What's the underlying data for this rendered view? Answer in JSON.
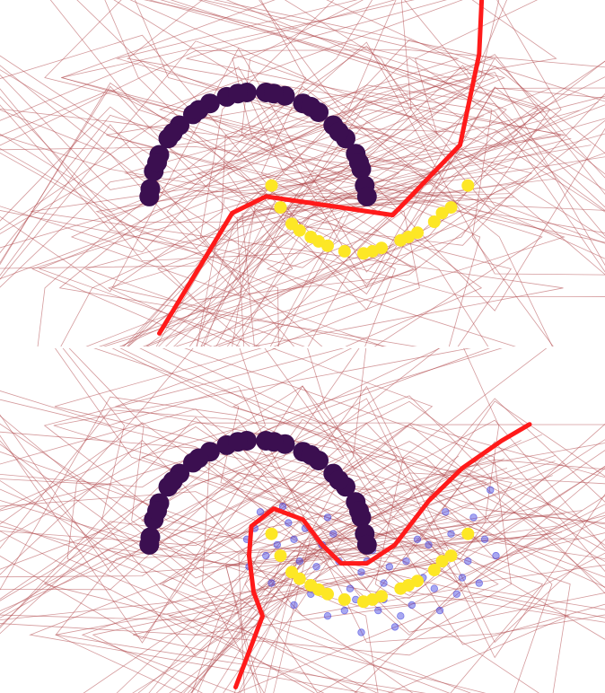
{
  "colors": {
    "class_0": "#3b0f50",
    "class_1": "#fde725",
    "boundary": "#ff1a1a",
    "region_lines": "#b0474b",
    "unlabeled": "#3f3fe0",
    "background": "#ffffff"
  },
  "chart_data": [
    {
      "type": "scatter",
      "title": "",
      "xlabel": "",
      "ylabel": "",
      "grid": false,
      "axes_visible": false,
      "series": [
        {
          "name": "",
          "color": "#3b0f50",
          "points": [
            [
              -0.98,
              0.12
            ],
            [
              -0.95,
              0.28
            ],
            [
              -0.9,
              0.43
            ],
            [
              -0.82,
              0.58
            ],
            [
              -0.72,
              0.7
            ],
            [
              -0.6,
              0.8
            ],
            [
              -0.45,
              0.9
            ],
            [
              -0.3,
              0.96
            ],
            [
              -0.12,
              1.0
            ],
            [
              0.05,
              1.0
            ],
            [
              0.22,
              0.97
            ],
            [
              0.38,
              0.9
            ],
            [
              0.52,
              0.82
            ],
            [
              0.65,
              0.7
            ],
            [
              0.76,
              0.58
            ],
            [
              0.85,
              0.44
            ],
            [
              0.9,
              0.3
            ],
            [
              0.93,
              0.15
            ],
            [
              0.95,
              0.05
            ],
            [
              -0.99,
              0.05
            ],
            [
              -0.92,
              0.36
            ],
            [
              -0.78,
              0.63
            ],
            [
              -0.55,
              0.84
            ],
            [
              -0.2,
              0.99
            ],
            [
              0.12,
              0.99
            ],
            [
              0.45,
              0.87
            ],
            [
              0.7,
              0.64
            ],
            [
              0.88,
              0.36
            ]
          ]
        },
        {
          "name": "",
          "color": "#fde725",
          "points": [
            [
              0.1,
              0.15
            ],
            [
              0.18,
              -0.05
            ],
            [
              0.28,
              -0.2
            ],
            [
              0.45,
              -0.32
            ],
            [
              0.6,
              -0.4
            ],
            [
              0.75,
              -0.45
            ],
            [
              0.92,
              -0.47
            ],
            [
              1.08,
              -0.42
            ],
            [
              1.25,
              -0.35
            ],
            [
              1.4,
              -0.28
            ],
            [
              1.55,
              -0.18
            ],
            [
              1.7,
              -0.05
            ],
            [
              1.85,
              0.15
            ],
            [
              0.52,
              -0.36
            ],
            [
              1.0,
              -0.45
            ],
            [
              1.32,
              -0.32
            ],
            [
              0.35,
              -0.26
            ],
            [
              1.62,
              -0.1
            ]
          ]
        }
      ],
      "decision_boundary": [
        [
          -0.9,
          -1.2
        ],
        [
          -0.25,
          -0.1
        ],
        [
          0.05,
          0.05
        ],
        [
          1.18,
          -0.12
        ],
        [
          1.78,
          0.52
        ],
        [
          1.95,
          1.35
        ],
        [
          1.98,
          2.0
        ]
      ]
    },
    {
      "type": "scatter",
      "title": "",
      "xlabel": "",
      "ylabel": "",
      "grid": false,
      "axes_visible": false,
      "series": [
        {
          "name": "",
          "color": "#3b0f50",
          "points": [
            [
              -0.98,
              0.12
            ],
            [
              -0.95,
              0.28
            ],
            [
              -0.9,
              0.43
            ],
            [
              -0.82,
              0.58
            ],
            [
              -0.72,
              0.7
            ],
            [
              -0.6,
              0.8
            ],
            [
              -0.45,
              0.9
            ],
            [
              -0.3,
              0.96
            ],
            [
              -0.12,
              1.0
            ],
            [
              0.05,
              1.0
            ],
            [
              0.22,
              0.97
            ],
            [
              0.38,
              0.9
            ],
            [
              0.52,
              0.82
            ],
            [
              0.65,
              0.7
            ],
            [
              0.76,
              0.58
            ],
            [
              0.85,
              0.44
            ],
            [
              0.9,
              0.3
            ],
            [
              0.93,
              0.15
            ],
            [
              0.95,
              0.05
            ],
            [
              -0.99,
              0.05
            ],
            [
              -0.92,
              0.36
            ],
            [
              -0.78,
              0.63
            ],
            [
              -0.55,
              0.84
            ],
            [
              -0.2,
              0.99
            ],
            [
              0.12,
              0.99
            ],
            [
              0.45,
              0.87
            ],
            [
              0.7,
              0.64
            ],
            [
              0.88,
              0.36
            ]
          ]
        },
        {
          "name": "",
          "color": "#fde725",
          "points": [
            [
              0.1,
              0.15
            ],
            [
              0.18,
              -0.05
            ],
            [
              0.28,
              -0.2
            ],
            [
              0.45,
              -0.32
            ],
            [
              0.6,
              -0.4
            ],
            [
              0.75,
              -0.45
            ],
            [
              0.92,
              -0.47
            ],
            [
              1.08,
              -0.42
            ],
            [
              1.25,
              -0.35
            ],
            [
              1.4,
              -0.28
            ],
            [
              1.55,
              -0.18
            ],
            [
              1.7,
              -0.05
            ],
            [
              1.85,
              0.15
            ],
            [
              0.52,
              -0.36
            ],
            [
              1.0,
              -0.45
            ],
            [
              1.32,
              -0.32
            ],
            [
              0.35,
              -0.26
            ],
            [
              1.62,
              -0.1
            ]
          ]
        },
        {
          "name": "",
          "color": "#3f3fe0",
          "points": [
            [
              -0.12,
              0.1
            ],
            [
              0.0,
              0.35
            ],
            [
              0.2,
              0.4
            ],
            [
              0.4,
              0.2
            ],
            [
              0.55,
              0.05
            ],
            [
              0.7,
              -0.1
            ],
            [
              0.9,
              -0.2
            ],
            [
              1.1,
              -0.3
            ],
            [
              1.3,
              -0.1
            ],
            [
              1.5,
              0.05
            ],
            [
              1.7,
              0.15
            ],
            [
              1.9,
              0.3
            ],
            [
              2.05,
              0.55
            ],
            [
              1.95,
              -0.3
            ],
            [
              1.6,
              -0.55
            ],
            [
              1.2,
              -0.7
            ],
            [
              0.9,
              -0.75
            ],
            [
              0.6,
              -0.6
            ],
            [
              0.3,
              -0.5
            ],
            [
              0.1,
              -0.3
            ],
            [
              -0.1,
              -0.15
            ],
            [
              0.15,
              0.05
            ],
            [
              0.5,
              -0.15
            ],
            [
              0.8,
              -0.35
            ],
            [
              1.05,
              -0.55
            ],
            [
              1.35,
              -0.5
            ],
            [
              1.75,
              -0.4
            ],
            [
              2.1,
              -0.05
            ],
            [
              0.25,
              0.25
            ],
            [
              0.65,
              0.15
            ],
            [
              1.0,
              0.0
            ],
            [
              1.45,
              -0.25
            ],
            [
              1.85,
              -0.1
            ],
            [
              0.35,
              -0.1
            ],
            [
              0.75,
              -0.55
            ],
            [
              1.15,
              -0.15
            ],
            [
              1.55,
              -0.35
            ],
            [
              0.05,
              -0.05
            ],
            [
              0.45,
              -0.4
            ],
            [
              0.95,
              -0.1
            ],
            [
              1.25,
              -0.6
            ],
            [
              1.65,
              0.35
            ],
            [
              2.0,
              0.1
            ],
            [
              0.6,
              0.3
            ],
            [
              -0.05,
              0.2
            ],
            [
              0.85,
              -0.45
            ],
            [
              1.4,
              0.1
            ],
            [
              1.8,
              -0.25
            ],
            [
              0.3,
              0.1
            ],
            [
              1.1,
              -0.45
            ]
          ]
        }
      ],
      "decision_boundary": [
        [
          -0.22,
          -1.25
        ],
        [
          0.02,
          -0.6
        ],
        [
          -0.06,
          -0.38
        ],
        [
          -0.1,
          -0.05
        ],
        [
          -0.08,
          0.22
        ],
        [
          0.12,
          0.38
        ],
        [
          0.38,
          0.28
        ],
        [
          0.55,
          0.05
        ],
        [
          0.72,
          -0.12
        ],
        [
          0.95,
          -0.12
        ],
        [
          1.2,
          0.05
        ],
        [
          1.5,
          0.45
        ],
        [
          1.8,
          0.75
        ],
        [
          2.15,
          1.0
        ],
        [
          2.4,
          1.15
        ]
      ]
    }
  ]
}
